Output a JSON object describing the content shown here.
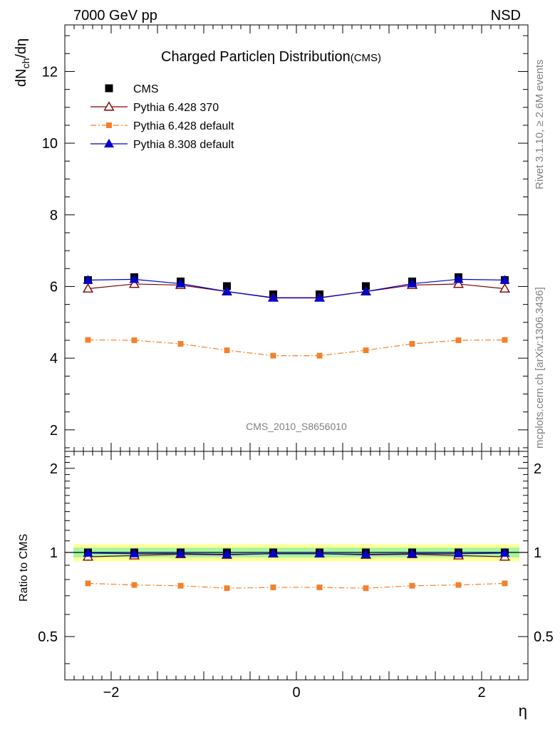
{
  "header": {
    "left": "7000 GeV pp",
    "right": "NSD"
  },
  "side_labels": {
    "rivet": "Rivet 3.1.10, ≥ 2.6M events",
    "mcplots": "mcplots.cern.ch [arXiv:1306.3436]"
  },
  "chart_data": {
    "type": "line",
    "title_main": "Charged Particle",
    "title_symbol": "η",
    "title_rest": " Distribution",
    "title_sub": "(CMS)",
    "analysis_id": "CMS_2010_S8656010",
    "xlabel": "η",
    "ylabel_main": "dN",
    "ylabel_sub": "ch",
    "ylabel_tail": "/dη",
    "ratio_ylabel": "Ratio to CMS",
    "xlim": [
      -2.5,
      2.5
    ],
    "ylim": [
      1.4,
      13.3
    ],
    "ratio_ylim": [
      0.35,
      2.3
    ],
    "x_ticks": [
      -2,
      0,
      2
    ],
    "x_tick_labels": [
      "−2",
      "0",
      "2"
    ],
    "y_ticks": [
      2,
      4,
      6,
      8,
      10,
      12
    ],
    "y_tick_labels": [
      "2",
      "4",
      "6",
      "8",
      "10",
      "12"
    ],
    "ratio_ticks": [
      0.5,
      1,
      2
    ],
    "ratio_tick_labels": [
      "0.5",
      "1",
      "2"
    ],
    "x": [
      -2.25,
      -1.75,
      -1.25,
      -0.75,
      -0.25,
      0.25,
      0.75,
      1.25,
      1.75,
      2.25
    ],
    "series": [
      {
        "name": "CMS",
        "color": "#000000",
        "marker": "square",
        "line": "none",
        "values": [
          6.18,
          6.26,
          6.14,
          6.01,
          5.78,
          5.78,
          6.01,
          6.14,
          6.26,
          6.18
        ],
        "ratio": [
          1,
          1,
          1,
          1,
          1,
          1,
          1,
          1,
          1,
          1
        ]
      },
      {
        "name": "Pythia 6.428 370",
        "color": "#800000",
        "marker": "triangle-open",
        "line": "solid",
        "values": [
          5.94,
          6.07,
          6.04,
          5.86,
          5.69,
          5.69,
          5.86,
          6.04,
          6.07,
          5.94
        ],
        "ratio": [
          0.965,
          0.975,
          0.985,
          0.98,
          0.99,
          0.99,
          0.98,
          0.985,
          0.975,
          0.965
        ]
      },
      {
        "name": "Pythia 6.428 default",
        "color": "#f5802a",
        "marker": "square-small",
        "line": "dashdot",
        "values": [
          4.51,
          4.5,
          4.4,
          4.22,
          4.07,
          4.07,
          4.22,
          4.4,
          4.5,
          4.51
        ],
        "ratio": [
          0.775,
          0.765,
          0.76,
          0.745,
          0.75,
          0.75,
          0.745,
          0.76,
          0.765,
          0.775
        ]
      },
      {
        "name": "Pythia 8.308 default",
        "color": "#0000cc",
        "marker": "triangle",
        "line": "solid",
        "values": [
          6.18,
          6.2,
          6.08,
          5.86,
          5.68,
          5.68,
          5.86,
          6.08,
          6.2,
          6.18
        ],
        "ratio": [
          0.995,
          0.99,
          0.99,
          0.985,
          0.99,
          0.99,
          0.985,
          0.99,
          0.99,
          0.995
        ]
      }
    ],
    "uncertainty_band": {
      "inner": [
        0.96,
        1.04
      ],
      "outer": [
        0.93,
        1.07
      ],
      "inner_color": "#a6f5a0",
      "outer_color": "#ffff99"
    }
  }
}
